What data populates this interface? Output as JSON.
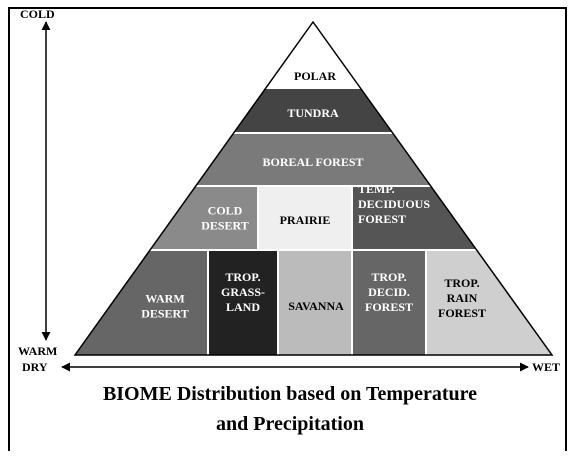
{
  "axis": {
    "top": "COLD",
    "bottom": "WARM",
    "left": "DRY",
    "right": "WET"
  },
  "regions": [
    {
      "lines": [
        "POLAR"
      ]
    },
    {
      "lines": [
        "TUNDRA"
      ]
    },
    {
      "lines": [
        "BOREAL FOREST"
      ]
    },
    {
      "lines": [
        "COLD",
        "DESERT"
      ]
    },
    {
      "lines": [
        "PRAIRIE"
      ]
    },
    {
      "lines": [
        "TEMP.",
        "DECIDUOUS",
        "FOREST"
      ]
    },
    {
      "lines": [
        "WARM",
        "DESERT"
      ]
    },
    {
      "lines": [
        "TROP.",
        "GRASS-",
        "LAND"
      ]
    },
    {
      "lines": [
        "SAVANNA"
      ]
    },
    {
      "lines": [
        "TROP.",
        "DECID.",
        "FOREST"
      ]
    },
    {
      "lines": [
        "TROP.",
        "RAIN",
        "FOREST"
      ]
    }
  ],
  "caption": [
    "BIOME Distribution based on Temperature",
    "and Precipitation"
  ]
}
